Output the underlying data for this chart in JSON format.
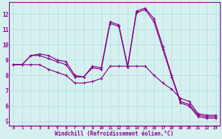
{
  "xlabel": "Windchill (Refroidissement éolien,°C)",
  "background_color": "#d6f0f0",
  "line_color": "#880088",
  "grid_color": "#aadddd",
  "axis_bg": "#d6f0f0",
  "xaxis_bar_color": "#6600aa",
  "xlim": [
    -0.5,
    23.5
  ],
  "ylim": [
    4.7,
    12.8
  ],
  "yticks": [
    5,
    6,
    7,
    8,
    9,
    10,
    11,
    12
  ],
  "xticks": [
    0,
    1,
    2,
    3,
    4,
    5,
    6,
    7,
    8,
    9,
    10,
    11,
    12,
    13,
    14,
    15,
    16,
    17,
    18,
    19,
    20,
    21,
    22,
    23
  ],
  "series": [
    [
      8.7,
      8.7,
      9.3,
      9.4,
      9.3,
      9.0,
      8.9,
      8.0,
      7.9,
      8.6,
      8.5,
      11.5,
      11.3,
      8.6,
      12.2,
      12.4,
      11.7,
      9.9,
      8.0,
      6.3,
      6.1,
      5.4,
      5.3,
      5.3
    ],
    [
      8.7,
      8.7,
      9.3,
      9.3,
      9.1,
      8.9,
      8.7,
      7.9,
      7.9,
      8.5,
      8.4,
      11.4,
      11.2,
      8.5,
      12.1,
      12.3,
      11.5,
      9.7,
      7.9,
      6.2,
      6.0,
      5.3,
      5.2,
      5.2
    ],
    [
      8.7,
      8.7,
      8.7,
      8.7,
      8.4,
      8.2,
      8.0,
      7.5,
      7.5,
      7.6,
      7.8,
      8.6,
      8.6,
      8.6,
      8.6,
      8.6,
      8.0,
      7.5,
      7.1,
      6.5,
      6.3,
      5.5,
      5.4,
      5.4
    ]
  ]
}
